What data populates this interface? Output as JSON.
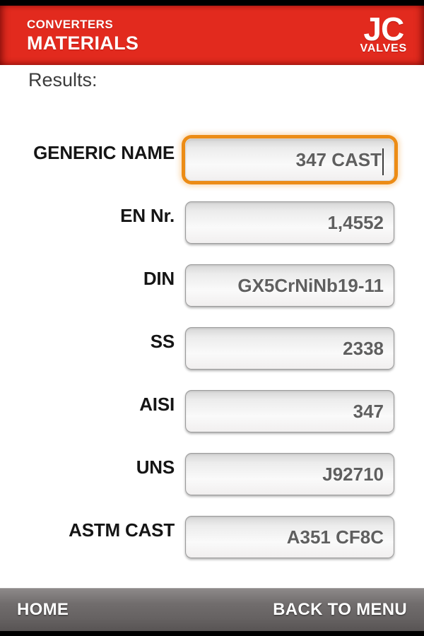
{
  "header": {
    "line1": "CONVERTERS",
    "line2": "MATERIALS",
    "logo_top": "JC",
    "logo_bottom": "VALVES"
  },
  "page": {
    "results_label": "Results:"
  },
  "form": {
    "fields": [
      {
        "label": "GENERIC NAME",
        "value": "347 CAST",
        "focused": true
      },
      {
        "label": "EN Nr.",
        "value": "1,4552",
        "focused": false
      },
      {
        "label": "DIN",
        "value": "GX5CrNiNb19-11",
        "focused": false
      },
      {
        "label": "SS",
        "value": "2338",
        "focused": false
      },
      {
        "label": "AISI",
        "value": "347",
        "focused": false
      },
      {
        "label": "UNS",
        "value": "J92710",
        "focused": false
      },
      {
        "label": "ASTM CAST",
        "value": "A351 CF8C",
        "focused": false
      }
    ]
  },
  "footer": {
    "home_label": "HOME",
    "back_label": "BACK TO MENU"
  },
  "colors": {
    "header_red": "#e22a1e",
    "focus_orange": "#ec8c16",
    "footer_gray": "#6e6a6a",
    "value_gray": "#5f5f5f"
  }
}
